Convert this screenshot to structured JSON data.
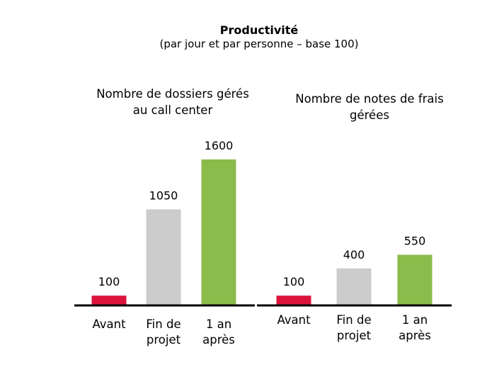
{
  "title": "Productivité",
  "subtitle": "(par jour et par personne – base 100)",
  "chart_data": [
    {
      "type": "bar",
      "title": "Nombre de dossiers gérés au call center",
      "title_lines": [
        "Nombre de dossiers gérés",
        "au call center"
      ],
      "categories": [
        "Avant",
        "Fin de projet",
        "1 an après"
      ],
      "category_lines": [
        [
          "Avant"
        ],
        [
          "Fin de",
          "projet"
        ],
        [
          "1 an",
          "après"
        ]
      ],
      "values": [
        100,
        1050,
        1600
      ],
      "value_labels": [
        "100",
        "1050",
        "1600"
      ],
      "colors": [
        "#dc143c",
        "#cccccc",
        "#8bbb4a"
      ],
      "ylim": [
        0,
        1600
      ],
      "grid": false,
      "legend": "none"
    },
    {
      "type": "bar",
      "title": "Nombre de notes de frais gérées",
      "title_lines": [
        "Nombre de notes de frais",
        "gérées"
      ],
      "categories": [
        "Avant",
        "Fin de projet",
        "1 an après"
      ],
      "category_lines": [
        [
          "Avant"
        ],
        [
          "Fin de",
          "projet"
        ],
        [
          "1 an",
          "après"
        ]
      ],
      "values": [
        100,
        400,
        550
      ],
      "value_labels": [
        "100",
        "400",
        "550"
      ],
      "colors": [
        "#dc143c",
        "#cccccc",
        "#8bbb4a"
      ],
      "ylim": [
        0,
        1600
      ],
      "grid": false,
      "legend": "none"
    }
  ],
  "axis_color": "#000000"
}
